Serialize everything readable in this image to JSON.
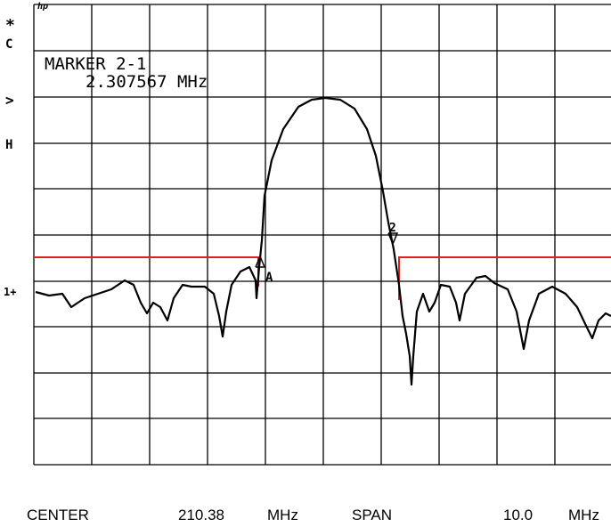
{
  "screen": {
    "logo": "hp",
    "side_labels": [
      "*",
      "C",
      ">",
      "H",
      "1+"
    ],
    "marker": {
      "title": "MARKER 2-1",
      "value": "2.307567 MHz"
    },
    "trace_labels": [
      "A",
      "2"
    ],
    "footer": {
      "center_label": "CENTER",
      "center_value": "210.38",
      "center_unit": "MHz",
      "span_label": "SPAN",
      "span_value": "10.0",
      "span_unit": "MHz"
    }
  }
}
